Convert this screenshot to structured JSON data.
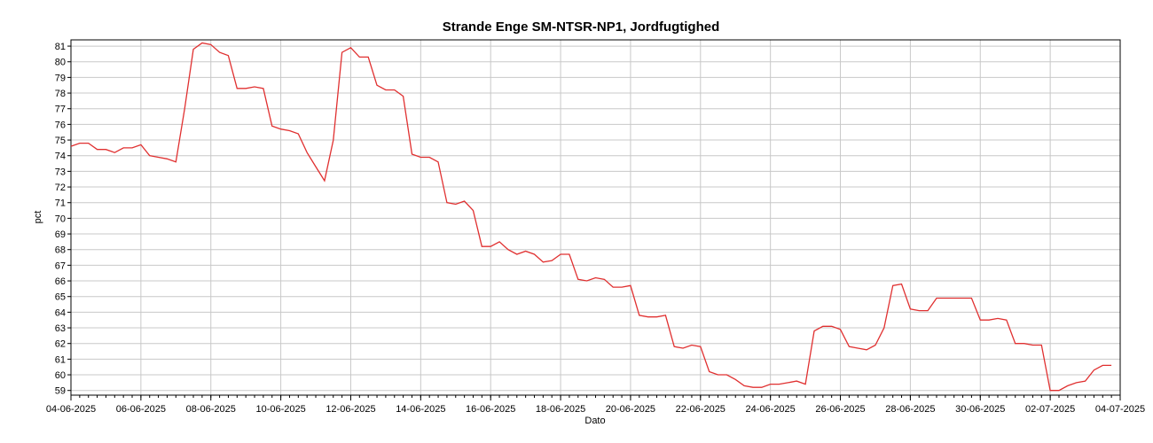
{
  "chart_data": {
    "type": "line",
    "title": "Strande Enge SM-NTSR-NP1, Jordfugtighed",
    "xlabel": "Dato",
    "ylabel": "pct",
    "xlim": [
      "2025-06-04",
      "2025-07-04"
    ],
    "ylim": [
      58.7,
      81.4
    ],
    "grid": true,
    "legend": "none",
    "x_tick_labels": [
      "04-06-2025",
      "06-06-2025",
      "08-06-2025",
      "10-06-2025",
      "12-06-2025",
      "14-06-2025",
      "16-06-2025",
      "18-06-2025",
      "20-06-2025",
      "22-06-2025",
      "24-06-2025",
      "26-06-2025",
      "28-06-2025",
      "30-06-2025",
      "02-07-2025",
      "04-07-2025"
    ],
    "y_ticks": [
      59,
      60,
      61,
      62,
      63,
      64,
      65,
      66,
      67,
      68,
      69,
      70,
      71,
      72,
      73,
      74,
      75,
      76,
      77,
      78,
      79,
      80,
      81
    ],
    "series": [
      {
        "color": "#e03030",
        "x": [
          "2025-06-04 00:00",
          "2025-06-04 06:00",
          "2025-06-04 12:00",
          "2025-06-04 18:00",
          "2025-06-05 00:00",
          "2025-06-05 06:00",
          "2025-06-05 12:00",
          "2025-06-05 18:00",
          "2025-06-06 00:00",
          "2025-06-06 06:00",
          "2025-06-06 12:00",
          "2025-06-06 18:00",
          "2025-06-07 00:00",
          "2025-06-07 06:00",
          "2025-06-07 12:00",
          "2025-06-07 18:00",
          "2025-06-08 00:00",
          "2025-06-08 06:00",
          "2025-06-08 12:00",
          "2025-06-08 18:00",
          "2025-06-09 00:00",
          "2025-06-09 06:00",
          "2025-06-09 12:00",
          "2025-06-09 18:00",
          "2025-06-10 00:00",
          "2025-06-10 06:00",
          "2025-06-10 12:00",
          "2025-06-10 18:00",
          "2025-06-11 00:00",
          "2025-06-11 06:00",
          "2025-06-11 12:00",
          "2025-06-11 18:00",
          "2025-06-12 00:00",
          "2025-06-12 06:00",
          "2025-06-12 12:00",
          "2025-06-12 18:00",
          "2025-06-13 00:00",
          "2025-06-13 06:00",
          "2025-06-13 12:00",
          "2025-06-13 18:00",
          "2025-06-14 00:00",
          "2025-06-14 06:00",
          "2025-06-14 12:00",
          "2025-06-14 18:00",
          "2025-06-15 00:00",
          "2025-06-15 06:00",
          "2025-06-15 12:00",
          "2025-06-15 18:00",
          "2025-06-16 00:00",
          "2025-06-16 06:00",
          "2025-06-16 12:00",
          "2025-06-16 18:00",
          "2025-06-17 00:00",
          "2025-06-17 06:00",
          "2025-06-17 12:00",
          "2025-06-17 18:00",
          "2025-06-18 00:00",
          "2025-06-18 06:00",
          "2025-06-18 12:00",
          "2025-06-18 18:00",
          "2025-06-19 00:00",
          "2025-06-19 06:00",
          "2025-06-19 12:00",
          "2025-06-19 18:00",
          "2025-06-20 00:00",
          "2025-06-20 06:00",
          "2025-06-20 12:00",
          "2025-06-20 18:00",
          "2025-06-21 00:00",
          "2025-06-21 06:00",
          "2025-06-21 12:00",
          "2025-06-21 18:00",
          "2025-06-22 00:00",
          "2025-06-22 06:00",
          "2025-06-22 12:00",
          "2025-06-22 18:00",
          "2025-06-23 00:00",
          "2025-06-23 06:00",
          "2025-06-23 12:00",
          "2025-06-23 18:00",
          "2025-06-24 00:00",
          "2025-06-24 06:00",
          "2025-06-24 12:00",
          "2025-06-24 18:00",
          "2025-06-25 00:00",
          "2025-06-25 06:00",
          "2025-06-25 12:00",
          "2025-06-25 18:00",
          "2025-06-26 00:00",
          "2025-06-26 06:00",
          "2025-06-26 12:00",
          "2025-06-26 18:00",
          "2025-06-27 00:00",
          "2025-06-27 06:00",
          "2025-06-27 12:00",
          "2025-06-27 18:00",
          "2025-06-28 00:00",
          "2025-06-28 06:00",
          "2025-06-28 12:00",
          "2025-06-28 18:00",
          "2025-06-29 00:00",
          "2025-06-29 06:00",
          "2025-06-29 12:00",
          "2025-06-29 18:00",
          "2025-06-30 00:00",
          "2025-06-30 06:00",
          "2025-06-30 12:00",
          "2025-06-30 18:00",
          "2025-07-01 00:00",
          "2025-07-01 06:00",
          "2025-07-01 12:00",
          "2025-07-01 18:00",
          "2025-07-02 00:00",
          "2025-07-02 06:00",
          "2025-07-02 12:00",
          "2025-07-02 18:00",
          "2025-07-03 00:00",
          "2025-07-03 06:00",
          "2025-07-03 12:00",
          "2025-07-03 18:00"
        ],
        "y": [
          74.6,
          74.8,
          74.8,
          74.4,
          74.4,
          74.2,
          74.5,
          74.5,
          74.7,
          74.0,
          73.9,
          73.8,
          73.6,
          77.0,
          80.8,
          81.2,
          81.1,
          80.6,
          80.4,
          78.3,
          78.3,
          78.4,
          78.3,
          75.9,
          75.7,
          75.6,
          75.4,
          74.2,
          73.3,
          72.4,
          75.0,
          80.6,
          80.9,
          80.3,
          80.3,
          78.5,
          78.2,
          78.2,
          77.8,
          74.1,
          73.9,
          73.9,
          73.6,
          71.0,
          70.9,
          71.1,
          70.5,
          68.2,
          68.2,
          68.5,
          68.0,
          67.7,
          67.9,
          67.7,
          67.2,
          67.3,
          67.7,
          67.7,
          66.1,
          66.0,
          66.2,
          66.1,
          65.6,
          65.6,
          65.7,
          63.8,
          63.7,
          63.7,
          63.8,
          61.8,
          61.7,
          61.9,
          61.8,
          60.2,
          60.0,
          60.0,
          59.7,
          59.3,
          59.2,
          59.2,
          59.4,
          59.4,
          59.5,
          59.6,
          59.4,
          62.8,
          63.1,
          63.1,
          62.9,
          61.8,
          61.7,
          61.6,
          61.9,
          63.0,
          65.7,
          65.8,
          64.2,
          64.1,
          64.1,
          64.9,
          64.9,
          64.9,
          64.9,
          64.9,
          63.5,
          63.5,
          63.6,
          63.5,
          62.0,
          62.0,
          61.9,
          61.9,
          59.0,
          59.0,
          59.3,
          59.5,
          59.6,
          60.3,
          60.6,
          60.6
        ]
      }
    ]
  }
}
